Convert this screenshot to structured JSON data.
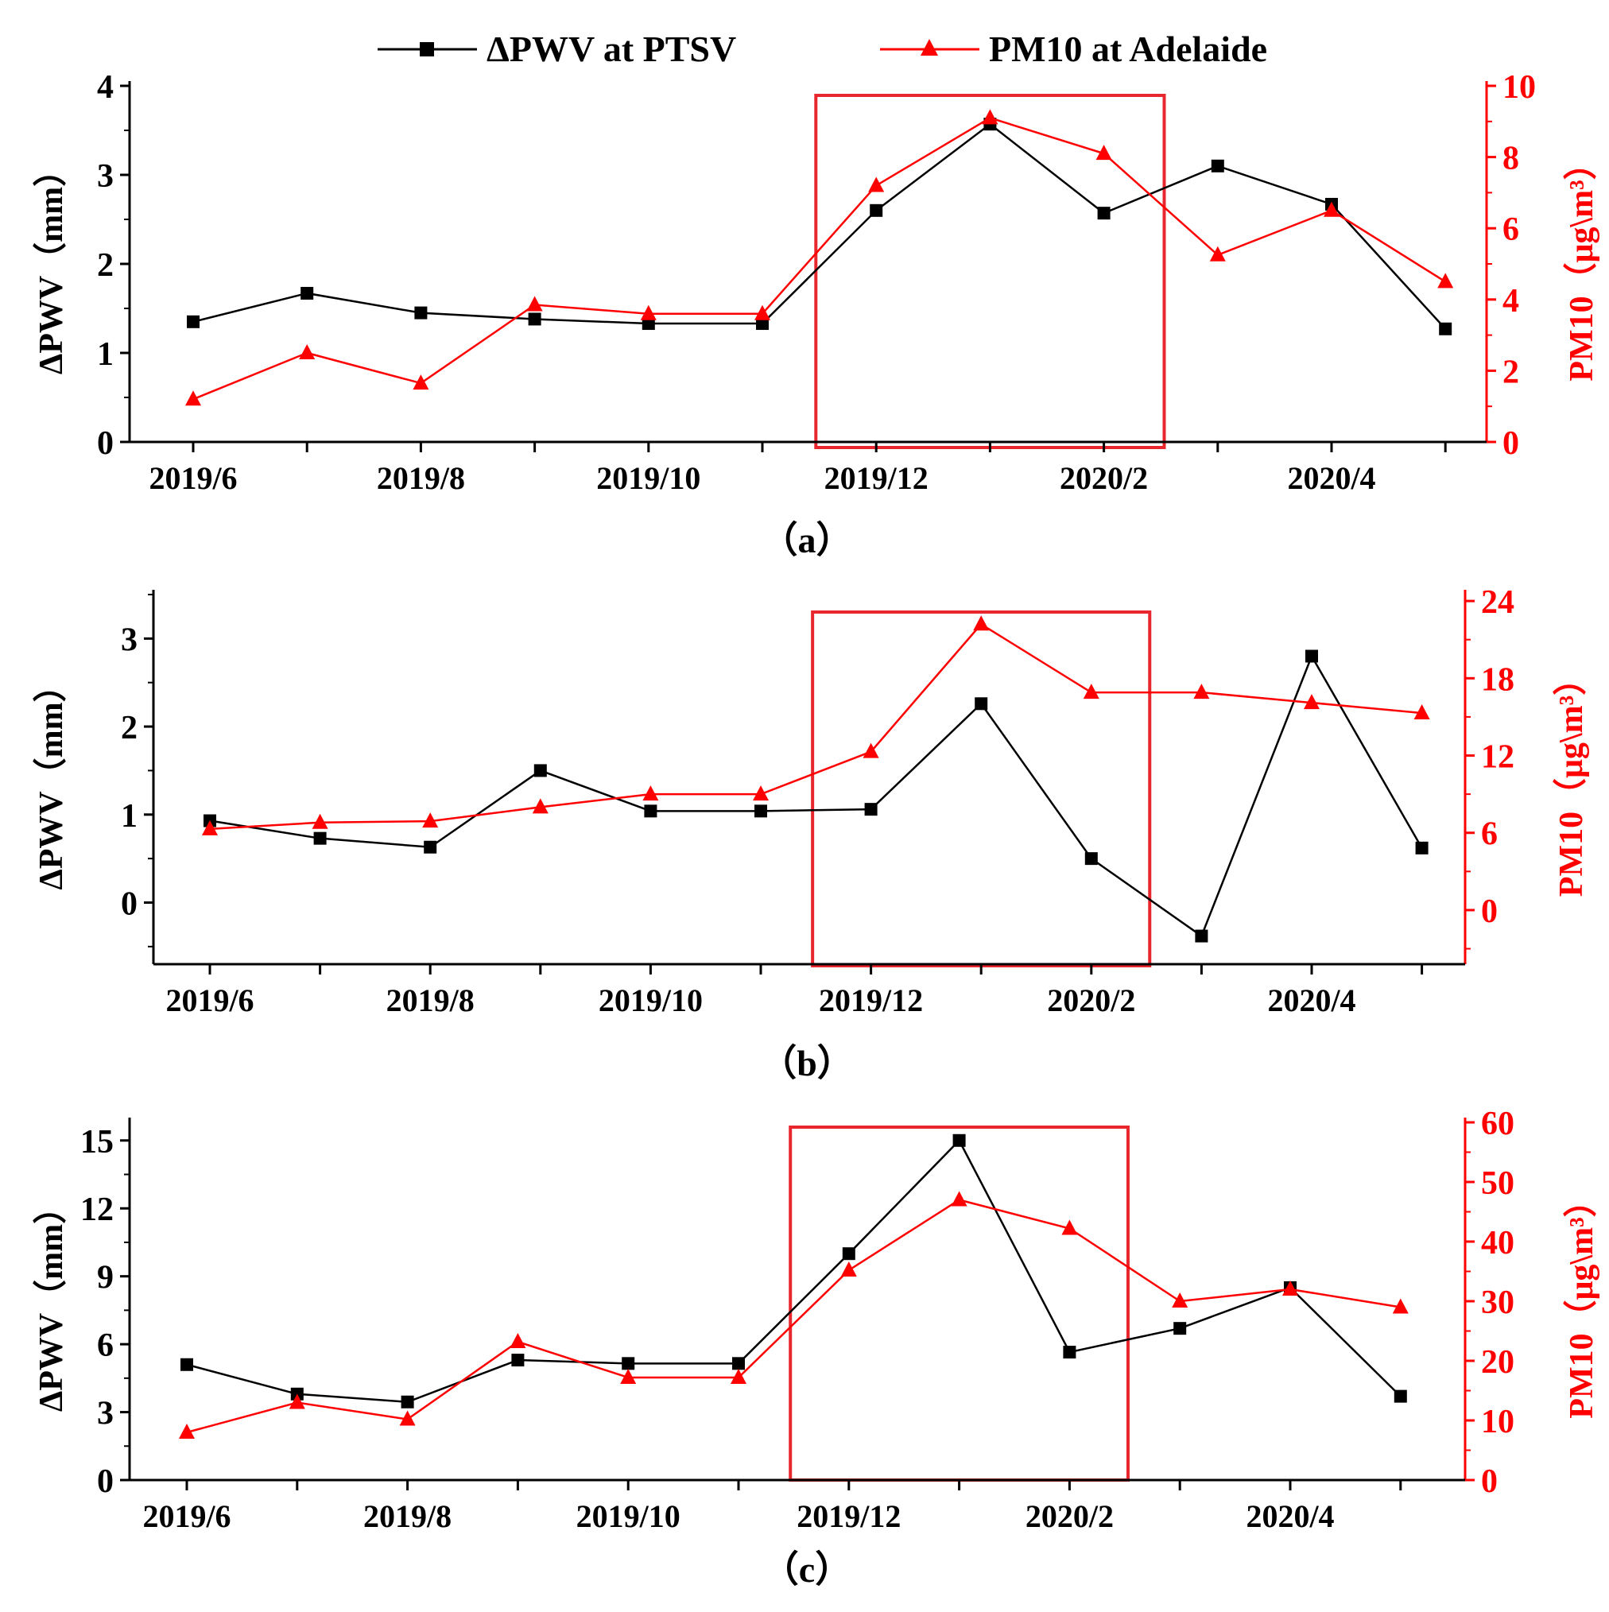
{
  "legend": [
    {
      "label": "ΔPWV at PTSV",
      "color": "#000000",
      "marker": "square"
    },
    {
      "label": "PM10 at Adelaide",
      "color": "#ff0000",
      "marker": "triangle"
    }
  ],
  "colors": {
    "left_axis": "#000000",
    "right_axis": "#ff0000",
    "box": "#e8262d"
  },
  "chart_data": [
    {
      "type": "line",
      "panel_label": "（a）",
      "categories": [
        "2019/6",
        "2019/7",
        "2019/8",
        "2019/9",
        "2019/10",
        "2019/11",
        "2019/12",
        "2020/1",
        "2020/2",
        "2020/3",
        "2020/4",
        "2020/5"
      ],
      "xtick_labels": [
        "2019/6",
        "",
        "2019/8",
        "",
        "2019/10",
        "",
        "2019/12",
        "",
        "2020/2",
        "",
        "2020/4",
        ""
      ],
      "ylabel": "ΔPWV（mm）",
      "y2label": "PM10（μg\\m³）",
      "ylim": [
        0,
        4
      ],
      "yticks": [
        0,
        1,
        2,
        3,
        4
      ],
      "yminor": 0.5,
      "y2lim": [
        0,
        10
      ],
      "y2ticks": [
        0,
        2,
        4,
        6,
        8,
        10
      ],
      "y2minor": 1,
      "series": [
        {
          "name": "ΔPWV at PTSV",
          "axis": "left",
          "values": [
            1.35,
            1.67,
            1.45,
            1.38,
            1.33,
            1.33,
            2.6,
            3.57,
            2.57,
            3.1,
            2.67,
            1.27
          ]
        },
        {
          "name": "PM10 at Adelaide",
          "axis": "right",
          "values": [
            1.2,
            2.5,
            1.65,
            3.85,
            3.6,
            3.6,
            7.2,
            9.1,
            8.1,
            5.25,
            6.5,
            4.5
          ]
        }
      ],
      "highlight_box": {
        "from": "2019/12",
        "to": "2020/2"
      }
    },
    {
      "type": "line",
      "panel_label": "（b）",
      "categories": [
        "2019/6",
        "2019/7",
        "2019/8",
        "2019/9",
        "2019/10",
        "2019/11",
        "2019/12",
        "2020/1",
        "2020/2",
        "2020/3",
        "2020/4",
        "2020/5"
      ],
      "xtick_labels": [
        "2019/6",
        "",
        "2019/8",
        "",
        "2019/10",
        "",
        "2019/12",
        "",
        "2020/2",
        "",
        "2020/4",
        ""
      ],
      "ylabel": "ΔPWV（mm）",
      "y2label": "PM10（μg\\m³）",
      "ylim": [
        -0.7,
        3.5
      ],
      "yticks": [
        0,
        1,
        2,
        3
      ],
      "yminor": 0.5,
      "y2lim": [
        -4.2,
        24.5
      ],
      "y2ticks": [
        0,
        6,
        12,
        18,
        24
      ],
      "y2minor": 3,
      "series": [
        {
          "name": "ΔPWV at PTSV",
          "axis": "left",
          "values": [
            0.93,
            0.73,
            0.63,
            1.5,
            1.04,
            1.04,
            1.06,
            2.26,
            0.5,
            -0.38,
            2.8,
            0.62
          ]
        },
        {
          "name": "PM10 at Adelaide",
          "axis": "right",
          "values": [
            6.3,
            6.8,
            6.9,
            8.0,
            9.0,
            9.0,
            12.3,
            22.2,
            16.9,
            16.9,
            16.1,
            15.3
          ]
        }
      ],
      "highlight_box": {
        "from": "2019/12",
        "to": "2020/2"
      }
    },
    {
      "type": "line",
      "panel_label": "（c）",
      "categories": [
        "2019/6",
        "2019/7",
        "2019/8",
        "2019/9",
        "2019/10",
        "2019/11",
        "2019/12",
        "2020/1",
        "2020/2",
        "2020/3",
        "2020/4",
        "2020/5"
      ],
      "xtick_labels": [
        "2019/6",
        "",
        "2019/8",
        "",
        "2019/10",
        "",
        "2019/12",
        "",
        "2020/2",
        "",
        "2020/4",
        ""
      ],
      "ylabel": "ΔPWV（mm）",
      "y2label": "PM10（μg\\m³）",
      "ylim": [
        0,
        15.8
      ],
      "yticks": [
        0,
        3,
        6,
        9,
        12,
        15
      ],
      "yminor": 1.5,
      "y2lim": [
        0,
        60
      ],
      "y2ticks": [
        0,
        10,
        20,
        30,
        40,
        50,
        60
      ],
      "y2minor": 5,
      "series": [
        {
          "name": "ΔPWV at PTSV",
          "axis": "left",
          "values": [
            5.1,
            3.8,
            3.45,
            5.3,
            5.15,
            5.15,
            10.0,
            15.0,
            5.65,
            6.7,
            8.5,
            3.7
          ]
        },
        {
          "name": "PM10 at Adelaide",
          "axis": "right",
          "values": [
            8.0,
            13.0,
            10.2,
            23.2,
            17.2,
            17.2,
            35.2,
            47.0,
            42.2,
            30.0,
            32.0,
            29.0
          ]
        }
      ],
      "highlight_box": {
        "from": "2019/12",
        "to": "2020/2"
      }
    }
  ]
}
